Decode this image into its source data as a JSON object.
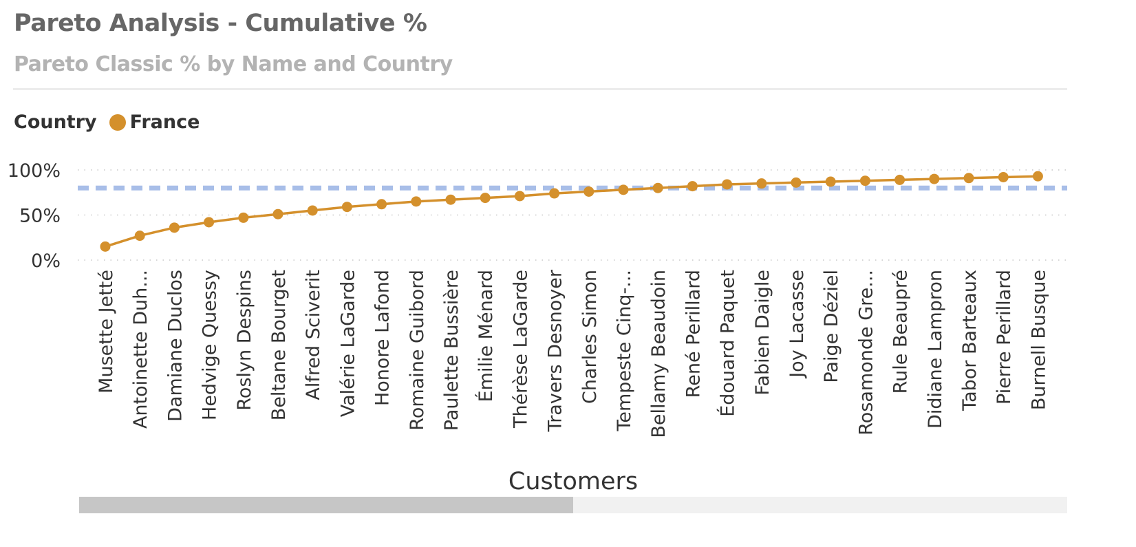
{
  "header": {
    "title": "Pareto Analysis - Cumulative %",
    "subtitle": "Pareto Classic % by Name and Country"
  },
  "legend": {
    "title": "Country",
    "items": [
      {
        "label": "France",
        "color": "#d4902c"
      }
    ]
  },
  "colors": {
    "series": "#d4902c",
    "reference_line": "#a8bee8",
    "gridline": "#c8c8c8",
    "axis_text": "#333333"
  },
  "chart_data": {
    "type": "line",
    "title": "Pareto Analysis - Cumulative %",
    "subtitle": "Pareto Classic % by Name and Country",
    "xlabel": "Customers",
    "ylabel": "",
    "legend_title": "Country",
    "legend_position": "top-left",
    "grid": true,
    "ylim": [
      0,
      100
    ],
    "yticks": [
      "0%",
      "50%",
      "100%"
    ],
    "ytick_values": [
      0,
      50,
      100
    ],
    "reference_line": {
      "value": 80
    },
    "categories": [
      "Musette Jetté",
      "Antoinette Duh...",
      "Damiane Duclos",
      "Hedvige Quessy",
      "Roslyn Despins",
      "Beltane Bourget",
      "Alfred Sciverit",
      "Valérie LaGarde",
      "Honore Lafond",
      "Romaine Guibord",
      "Paulette Bussière",
      "Émilie Ménard",
      "Thérèse LaGarde",
      "Travers Desnoyer",
      "Charles Simon",
      "Tempeste Cinq-...",
      "Bellamy Beaudoin",
      "René Perillard",
      "Édouard Paquet",
      "Fabien Daigle",
      "Joy Lacasse",
      "Paige Déziel",
      "Rosamonde Gre...",
      "Rule Beaupré",
      "Didiane Lampron",
      "Tabor Barteaux",
      "Pierre Perillard",
      "Burnell Busque"
    ],
    "series": [
      {
        "name": "France",
        "values": [
          15,
          27,
          36,
          42,
          47,
          51,
          55,
          59,
          62,
          65,
          67,
          69,
          71,
          74,
          76,
          78,
          80,
          82,
          84,
          85,
          86,
          87,
          88,
          89,
          90,
          91,
          92,
          93
        ]
      }
    ],
    "scrollbar_visible_fraction": 0.5
  }
}
